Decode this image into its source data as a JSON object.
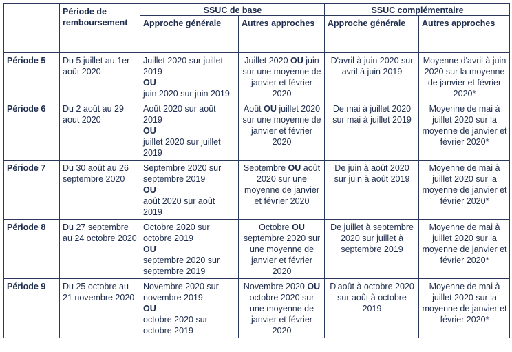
{
  "header": {
    "period_col": "Période de remboursement",
    "ssuc_base": "SSUC de base",
    "ssuc_comp": "SSUC complémentaire",
    "approche_generale": "Approche générale",
    "autres_approches": "Autres approches"
  },
  "or_word": "OU",
  "rows": [
    {
      "label": "Période 5",
      "dates": "Du 5 juillet au 1er août 2020",
      "base_gen_a": "Juillet 2020 sur juillet 2019",
      "base_gen_b": "juin 2020 sur juin 2019",
      "base_aut_a": "Juillet 2020",
      "base_aut_b": "juin sur une moyenne de janvier et février 2020",
      "comp_gen": "D'avril à juin 2020 sur avril à juin 2019",
      "comp_aut": "Moyenne d'avril à juin 2020 sur la moyenne de janvier et février 2020*"
    },
    {
      "label": "Période 6",
      "dates": "Du 2 août au 29 aout 2020",
      "base_gen_a": "Août 2020 sur août 2019",
      "base_gen_b": "juillet 2020 sur juillet 2019",
      "base_aut_a": "Août",
      "base_aut_b": "juillet 2020 sur une moyenne de janvier et février 2020",
      "comp_gen": "De mai à juillet 2020 sur mai à juillet 2019",
      "comp_aut": "Moyenne de mai à juillet 2020 sur la moyenne de janvier et février 2020*"
    },
    {
      "label": "Période 7",
      "dates": "Du 30 août au 26 septembre 2020",
      "base_gen_a": "Septembre 2020 sur septembre 2019",
      "base_gen_b": "août 2020 sur août 2019",
      "base_aut_a": "Septembre",
      "base_aut_b": "août 2020 sur une moyenne de janvier et février 2020",
      "comp_gen": "De juin à août 2020 sur juin à août 2019",
      "comp_aut": "Moyenne de mai à juillet 2020 sur la moyenne de janvier et février 2020*"
    },
    {
      "label": "Période 8",
      "dates": "Du 27 septembre au 24 octobre 2020",
      "base_gen_a": "Octobre 2020 sur octobre 2019",
      "base_gen_b": "septembre 2020 sur septembre 2019",
      "base_aut_a": "Octobre",
      "base_aut_b": "septembre 2020 sur une moyenne de janvier et février 2020",
      "comp_gen": "De juillet à septembre 2020 sur juillet à septembre 2019",
      "comp_aut": "Moyenne de mai à juillet 2020 sur la moyenne de janvier et février 2020*"
    },
    {
      "label": "Période 9",
      "dates": "Du 25 octobre au 21 novembre 2020",
      "base_gen_a": "Novembre 2020 sur novembre 2019",
      "base_gen_b": "octobre 2020 sur octobre 2019",
      "base_aut_a": "Novembre 2020",
      "base_aut_b": "octobre 2020 sur une moyenne de janvier et février 2020",
      "comp_gen": "D'août à octobre 2020 sur août à octobre 2019",
      "comp_aut": "Moyenne de mai à juillet 2020 sur la moyenne de janvier et février 2020*"
    }
  ]
}
